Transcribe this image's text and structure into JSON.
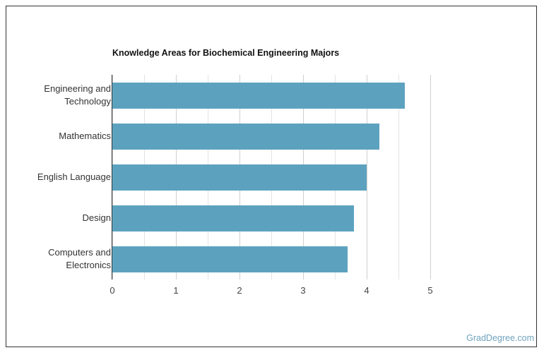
{
  "chart_data": {
    "type": "bar",
    "orientation": "horizontal",
    "title": "Knowledge Areas for Biochemical Engineering Majors",
    "categories": [
      "Engineering and Technology",
      "Mathematics",
      "English Language",
      "Design",
      "Computers and Electronics"
    ],
    "category_lines": [
      [
        "Engineering and",
        "Technology"
      ],
      [
        "Mathematics"
      ],
      [
        "English Language"
      ],
      [
        "Design"
      ],
      [
        "Computers and",
        "Electronics"
      ]
    ],
    "values": [
      4.6,
      4.2,
      4.0,
      3.8,
      3.7
    ],
    "xlabel": "",
    "ylabel": "",
    "xlim": [
      0,
      5
    ],
    "xticks": [
      "0",
      "1",
      "2",
      "3",
      "4",
      "5"
    ],
    "grid": true,
    "bar_color": "#5ca2bf"
  },
  "credit": "GradDegree.com"
}
